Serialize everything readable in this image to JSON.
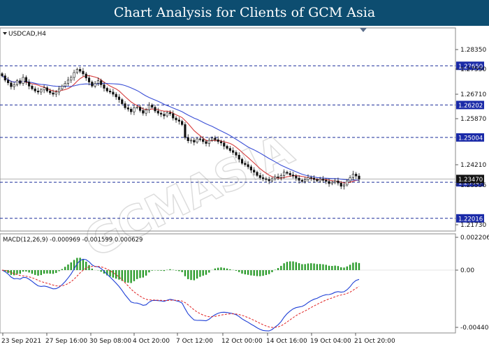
{
  "header": {
    "title": "Chart Analysis for Clients of GCM Asia"
  },
  "chart_label": "USDCAD,H4",
  "watermark": "GCMASIA",
  "price_axis": {
    "ticks": [
      "1.28350",
      "1.27550",
      "1.26710",
      "1.25870",
      "1.24210",
      "1.23556",
      "1.21730"
    ],
    "levels": [
      {
        "label": "1.27650",
        "value": 1.2765
      },
      {
        "label": "1.26202",
        "value": 1.26202
      },
      {
        "label": "1.25004",
        "value": 1.25004
      },
      {
        "label": "1.23347",
        "value": 1.23347
      },
      {
        "label": "1.22016",
        "value": 1.22016
      }
    ],
    "current_label": "1.23470",
    "current_value": 1.2347
  },
  "macd": {
    "label": "MACD(12,26,9) -0.000969 -0.001599 0.000629",
    "ticks": [
      "0.002206",
      "0.00",
      "-0.004403"
    ]
  },
  "time_axis": {
    "labels": [
      "23 Sep 2021",
      "27 Sep 16:00",
      "30 Sep 08:00",
      "4 Oct 20:00",
      "7 Oct 12:00",
      "12 Oct 00:00",
      "14 Oct 16:00",
      "19 Oct 04:00",
      "21 Oct 20:00"
    ]
  },
  "chart_data": {
    "type": "candlestick",
    "symbol": "USDCAD,H4",
    "price_ylim": [
      1.2165,
      1.2892
    ],
    "candles_close": [
      1.2728,
      1.2712,
      1.2702,
      1.2688,
      1.2695,
      1.271,
      1.27,
      1.2722,
      1.2705,
      1.269,
      1.268,
      1.2672,
      1.2668,
      1.2676,
      1.2684,
      1.2672,
      1.2665,
      1.266,
      1.2668,
      1.268,
      1.269,
      1.27,
      1.2712,
      1.2722,
      1.274,
      1.2752,
      1.2745,
      1.2735,
      1.272,
      1.2705,
      1.269,
      1.27,
      1.271,
      1.2695,
      1.2682,
      1.2672,
      1.2668,
      1.266,
      1.265,
      1.264,
      1.2625,
      1.261,
      1.2605,
      1.2595,
      1.261,
      1.2612,
      1.26,
      1.259,
      1.2602,
      1.262,
      1.2612,
      1.2598,
      1.259,
      1.2586,
      1.258,
      1.2592,
      1.2588,
      1.2572,
      1.2565,
      1.256,
      1.2548,
      1.25,
      1.2488,
      1.249,
      1.2483,
      1.2495,
      1.2493,
      1.2485,
      1.2478,
      1.249,
      1.2498,
      1.2492,
      1.2485,
      1.248,
      1.2468,
      1.246,
      1.2452,
      1.2445,
      1.2435,
      1.242,
      1.2405,
      1.24,
      1.2392,
      1.238,
      1.2372,
      1.236,
      1.2352,
      1.2348,
      1.2345,
      1.234,
      1.2348,
      1.2355,
      1.2352,
      1.236,
      1.2372,
      1.2368,
      1.2362,
      1.2358,
      1.235,
      1.2342,
      1.2338,
      1.2345,
      1.2352,
      1.235,
      1.2345,
      1.234,
      1.2346,
      1.2342,
      1.2338,
      1.233,
      1.2335,
      1.234,
      1.2332,
      1.232,
      1.2325,
      1.234,
      1.2352,
      1.2365,
      1.2358,
      1.2347
    ],
    "series": [
      {
        "name": "MA-red",
        "color": "#d63c3c"
      },
      {
        "name": "MA-blue",
        "color": "#3a4fd6"
      }
    ],
    "macd_hist_color": "#2a9b2a",
    "macd_line_color": "#1e3fd6",
    "signal_color": "#e02020",
    "macd_ylim": [
      -0.0048,
      0.0026
    ]
  },
  "colors": {
    "banner": "#0d4d70",
    "level_line": "#1b2d9a",
    "level_tag_bg": "#1a2aa8",
    "current_tag_bg": "#141414"
  }
}
